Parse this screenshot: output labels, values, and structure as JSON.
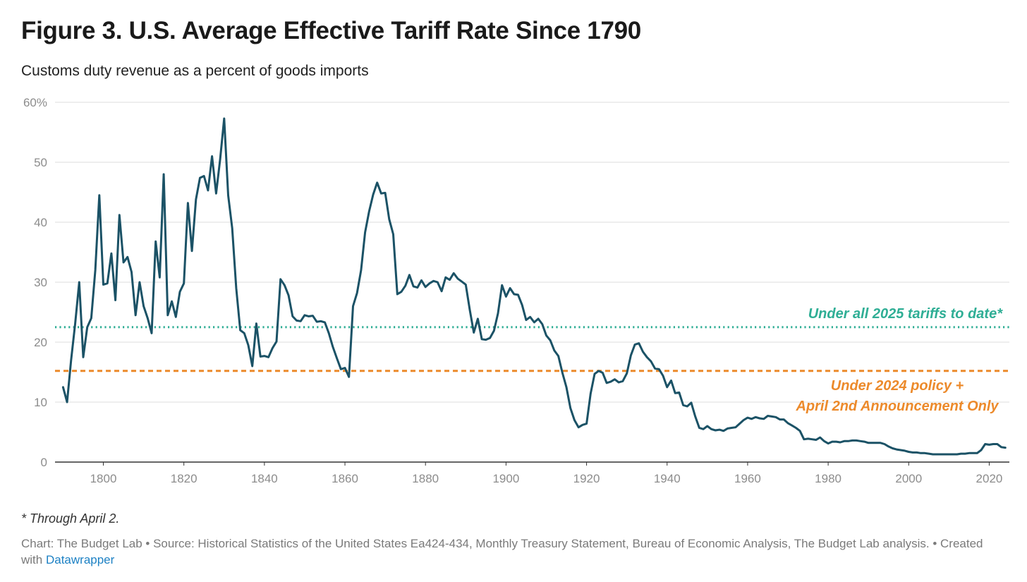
{
  "title": "Figure 3. U.S. Average Effective Tariff Rate Since 1790",
  "subtitle": "Customs duty revenue as a percent of goods imports",
  "footnote": "* Through April 2.",
  "source_text": "Chart: The Budget Lab • Source: Historical Statistics of the United States Ea424-434, Monthly Treasury Statement, Bureau of Economic Analysis, The Budget Lab analysis. • Created with",
  "source_link": "Datawrapper",
  "colors": {
    "line": "#1b5266",
    "tariff_2025": "#2fae95",
    "policy_2024": "#ec8a2b",
    "grid": "#dddddd",
    "axis": "#333333"
  },
  "chart_data": {
    "type": "line",
    "xlim": [
      1788,
      2025
    ],
    "ylim": [
      0,
      60
    ],
    "grid": true,
    "x_ticks": [
      1800,
      1820,
      1840,
      1860,
      1880,
      1900,
      1920,
      1940,
      1960,
      1980,
      2000,
      2020
    ],
    "y_ticks": [
      {
        "value": 0,
        "label": "0"
      },
      {
        "value": 10,
        "label": "10"
      },
      {
        "value": 20,
        "label": "20"
      },
      {
        "value": 30,
        "label": "30"
      },
      {
        "value": 40,
        "label": "40"
      },
      {
        "value": 50,
        "label": "50"
      },
      {
        "value": 60,
        "label": "60%"
      }
    ],
    "series": [
      {
        "values": [
          [
            1790,
            12.5
          ],
          [
            1791,
            10.0
          ],
          [
            1792,
            17.0
          ],
          [
            1793,
            23.0
          ],
          [
            1794,
            30.0
          ],
          [
            1795,
            17.5
          ],
          [
            1796,
            22.5
          ],
          [
            1797,
            24.0
          ],
          [
            1798,
            32.0
          ],
          [
            1799,
            44.5
          ],
          [
            1800,
            29.6
          ],
          [
            1801,
            29.8
          ],
          [
            1802,
            34.8
          ],
          [
            1803,
            27.0
          ],
          [
            1804,
            41.2
          ],
          [
            1805,
            33.3
          ],
          [
            1806,
            34.2
          ],
          [
            1807,
            31.7
          ],
          [
            1808,
            24.5
          ],
          [
            1809,
            30.0
          ],
          [
            1810,
            26.0
          ],
          [
            1811,
            24.0
          ],
          [
            1812,
            21.5
          ],
          [
            1813,
            36.8
          ],
          [
            1814,
            30.8
          ],
          [
            1815,
            48.0
          ],
          [
            1816,
            24.5
          ],
          [
            1817,
            26.8
          ],
          [
            1818,
            24.2
          ],
          [
            1819,
            28.4
          ],
          [
            1820,
            29.8
          ],
          [
            1821,
            43.2
          ],
          [
            1822,
            35.2
          ],
          [
            1823,
            43.8
          ],
          [
            1824,
            47.4
          ],
          [
            1825,
            47.7
          ],
          [
            1826,
            45.3
          ],
          [
            1827,
            51.0
          ],
          [
            1828,
            44.8
          ],
          [
            1829,
            50.5
          ],
          [
            1830,
            57.3
          ],
          [
            1831,
            44.5
          ],
          [
            1832,
            39.0
          ],
          [
            1833,
            29.0
          ],
          [
            1834,
            22.0
          ],
          [
            1835,
            21.5
          ],
          [
            1836,
            19.5
          ],
          [
            1837,
            16.0
          ],
          [
            1838,
            23.1
          ],
          [
            1839,
            17.6
          ],
          [
            1840,
            17.7
          ],
          [
            1841,
            17.5
          ],
          [
            1842,
            19.0
          ],
          [
            1843,
            20.1
          ],
          [
            1844,
            30.5
          ],
          [
            1845,
            29.5
          ],
          [
            1846,
            27.8
          ],
          [
            1847,
            24.3
          ],
          [
            1848,
            23.6
          ],
          [
            1849,
            23.5
          ],
          [
            1850,
            24.5
          ],
          [
            1851,
            24.3
          ],
          [
            1852,
            24.4
          ],
          [
            1853,
            23.4
          ],
          [
            1854,
            23.5
          ],
          [
            1855,
            23.3
          ],
          [
            1856,
            21.5
          ],
          [
            1857,
            19.2
          ],
          [
            1858,
            17.3
          ],
          [
            1859,
            15.5
          ],
          [
            1860,
            15.7
          ],
          [
            1861,
            14.2
          ],
          [
            1862,
            26.0
          ],
          [
            1863,
            28.2
          ],
          [
            1864,
            32.0
          ],
          [
            1865,
            38.3
          ],
          [
            1866,
            41.8
          ],
          [
            1867,
            44.6
          ],
          [
            1868,
            46.6
          ],
          [
            1869,
            44.8
          ],
          [
            1870,
            44.9
          ],
          [
            1871,
            40.5
          ],
          [
            1872,
            38.0
          ],
          [
            1873,
            28.0
          ],
          [
            1874,
            28.4
          ],
          [
            1875,
            29.4
          ],
          [
            1876,
            31.2
          ],
          [
            1877,
            29.3
          ],
          [
            1878,
            29.1
          ],
          [
            1879,
            30.3
          ],
          [
            1880,
            29.2
          ],
          [
            1881,
            29.8
          ],
          [
            1882,
            30.2
          ],
          [
            1883,
            30.0
          ],
          [
            1884,
            28.5
          ],
          [
            1885,
            30.8
          ],
          [
            1886,
            30.4
          ],
          [
            1887,
            31.5
          ],
          [
            1888,
            30.6
          ],
          [
            1889,
            30.1
          ],
          [
            1890,
            29.6
          ],
          [
            1891,
            25.4
          ],
          [
            1892,
            21.6
          ],
          [
            1893,
            23.9
          ],
          [
            1894,
            20.5
          ],
          [
            1895,
            20.4
          ],
          [
            1896,
            20.7
          ],
          [
            1897,
            21.9
          ],
          [
            1898,
            24.8
          ],
          [
            1899,
            29.5
          ],
          [
            1900,
            27.6
          ],
          [
            1901,
            29.0
          ],
          [
            1902,
            28.0
          ],
          [
            1903,
            27.9
          ],
          [
            1904,
            26.2
          ],
          [
            1905,
            23.7
          ],
          [
            1906,
            24.2
          ],
          [
            1907,
            23.3
          ],
          [
            1908,
            23.9
          ],
          [
            1909,
            23.0
          ],
          [
            1910,
            21.1
          ],
          [
            1911,
            20.3
          ],
          [
            1912,
            18.6
          ],
          [
            1913,
            17.7
          ],
          [
            1914,
            14.9
          ],
          [
            1915,
            12.5
          ],
          [
            1916,
            9.0
          ],
          [
            1917,
            7.0
          ],
          [
            1918,
            5.8
          ],
          [
            1919,
            6.2
          ],
          [
            1920,
            6.4
          ],
          [
            1921,
            11.4
          ],
          [
            1922,
            14.7
          ],
          [
            1923,
            15.2
          ],
          [
            1924,
            14.9
          ],
          [
            1925,
            13.2
          ],
          [
            1926,
            13.4
          ],
          [
            1927,
            13.8
          ],
          [
            1928,
            13.3
          ],
          [
            1929,
            13.5
          ],
          [
            1930,
            14.8
          ],
          [
            1931,
            17.8
          ],
          [
            1932,
            19.6
          ],
          [
            1933,
            19.8
          ],
          [
            1934,
            18.4
          ],
          [
            1935,
            17.5
          ],
          [
            1936,
            16.8
          ],
          [
            1937,
            15.6
          ],
          [
            1938,
            15.5
          ],
          [
            1939,
            14.4
          ],
          [
            1940,
            12.5
          ],
          [
            1941,
            13.6
          ],
          [
            1942,
            11.5
          ],
          [
            1943,
            11.6
          ],
          [
            1944,
            9.5
          ],
          [
            1945,
            9.3
          ],
          [
            1946,
            9.9
          ],
          [
            1947,
            7.6
          ],
          [
            1948,
            5.7
          ],
          [
            1949,
            5.5
          ],
          [
            1950,
            6.0
          ],
          [
            1951,
            5.5
          ],
          [
            1952,
            5.3
          ],
          [
            1953,
            5.4
          ],
          [
            1954,
            5.2
          ],
          [
            1955,
            5.6
          ],
          [
            1956,
            5.7
          ],
          [
            1957,
            5.8
          ],
          [
            1958,
            6.4
          ],
          [
            1959,
            7.0
          ],
          [
            1960,
            7.4
          ],
          [
            1961,
            7.2
          ],
          [
            1962,
            7.5
          ],
          [
            1963,
            7.3
          ],
          [
            1964,
            7.2
          ],
          [
            1965,
            7.7
          ],
          [
            1966,
            7.6
          ],
          [
            1967,
            7.5
          ],
          [
            1968,
            7.1
          ],
          [
            1969,
            7.1
          ],
          [
            1970,
            6.5
          ],
          [
            1971,
            6.1
          ],
          [
            1972,
            5.7
          ],
          [
            1973,
            5.2
          ],
          [
            1974,
            3.8
          ],
          [
            1975,
            3.9
          ],
          [
            1976,
            3.8
          ],
          [
            1977,
            3.7
          ],
          [
            1978,
            4.1
          ],
          [
            1979,
            3.5
          ],
          [
            1980,
            3.1
          ],
          [
            1981,
            3.4
          ],
          [
            1982,
            3.4
          ],
          [
            1983,
            3.3
          ],
          [
            1984,
            3.5
          ],
          [
            1985,
            3.5
          ],
          [
            1986,
            3.6
          ],
          [
            1987,
            3.6
          ],
          [
            1988,
            3.5
          ],
          [
            1989,
            3.4
          ],
          [
            1990,
            3.2
          ],
          [
            1991,
            3.2
          ],
          [
            1992,
            3.2
          ],
          [
            1993,
            3.2
          ],
          [
            1994,
            3.0
          ],
          [
            1995,
            2.6
          ],
          [
            1996,
            2.3
          ],
          [
            1997,
            2.1
          ],
          [
            1998,
            2.0
          ],
          [
            1999,
            1.9
          ],
          [
            2000,
            1.7
          ],
          [
            2001,
            1.6
          ],
          [
            2002,
            1.6
          ],
          [
            2003,
            1.5
          ],
          [
            2004,
            1.5
          ],
          [
            2005,
            1.4
          ],
          [
            2006,
            1.3
          ],
          [
            2007,
            1.3
          ],
          [
            2008,
            1.3
          ],
          [
            2009,
            1.3
          ],
          [
            2010,
            1.3
          ],
          [
            2011,
            1.3
          ],
          [
            2012,
            1.3
          ],
          [
            2013,
            1.4
          ],
          [
            2014,
            1.4
          ],
          [
            2015,
            1.5
          ],
          [
            2016,
            1.5
          ],
          [
            2017,
            1.5
          ],
          [
            2018,
            2.0
          ],
          [
            2019,
            3.0
          ],
          [
            2020,
            2.9
          ],
          [
            2021,
            3.0
          ],
          [
            2022,
            3.0
          ],
          [
            2023,
            2.5
          ],
          [
            2024,
            2.4
          ]
        ]
      }
    ],
    "reference_lines": [
      {
        "value": 22.5,
        "style": "dotted",
        "color": "#2fae95",
        "label_lines": [
          "Under all 2025 tariffs to date*"
        ]
      },
      {
        "value": 15.2,
        "style": "dashed",
        "color": "#ec8a2b",
        "label_lines": [
          "Under 2024 policy +",
          "April 2nd Announcement Only"
        ]
      }
    ]
  }
}
